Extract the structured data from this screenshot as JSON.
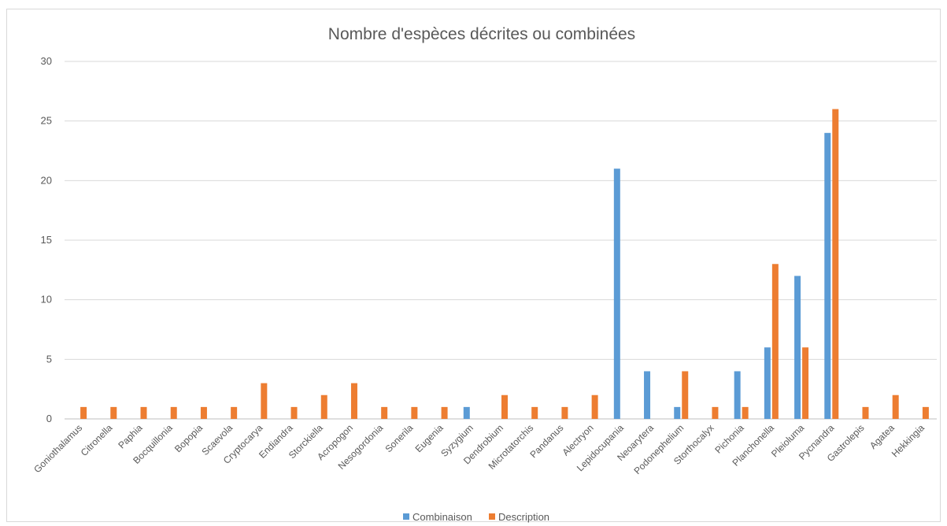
{
  "chart_data": {
    "type": "bar",
    "title": "Nombre d'espèces décrites ou combinées",
    "ylim": [
      0,
      30
    ],
    "ytick_step": 5,
    "ytick_labels": [
      "0",
      "5",
      "10",
      "15",
      "20",
      "25",
      "30"
    ],
    "grid": true,
    "legend_position": "bottom",
    "categories": [
      "Goniothalamus",
      "Citronella",
      "Paphia",
      "Bocquillonia",
      "Bopopia",
      "Scaevola",
      "Cryptocarya",
      "Endiandra",
      "Storckiella",
      "Acropogon",
      "Nesogordonia",
      "Sonerila",
      "Eugenia",
      "Syzygium",
      "Dendrobium",
      "Microtatorchis",
      "Pandanus",
      "Alectryon",
      "Lepidocupania",
      "Neoarytera",
      "Podonephelium",
      "Storthocalyx",
      "Pichonia",
      "Planchonella",
      "Pleioluma",
      "Pycnandra",
      "Gastrolepis",
      "Agatea",
      "Hekkingia"
    ],
    "series": [
      {
        "name": "Combinaison",
        "color": "#5b9bd5",
        "values": [
          0,
          0,
          0,
          0,
          0,
          0,
          0,
          0,
          0,
          0,
          0,
          0,
          0,
          1,
          0,
          0,
          0,
          0,
          21,
          4,
          1,
          0,
          4,
          6,
          12,
          24,
          0,
          0,
          0
        ]
      },
      {
        "name": "Description",
        "color": "#ed7d31",
        "values": [
          1,
          1,
          1,
          1,
          1,
          1,
          3,
          1,
          2,
          3,
          1,
          1,
          1,
          0,
          2,
          1,
          1,
          2,
          0,
          0,
          4,
          1,
          1,
          13,
          6,
          26,
          1,
          2,
          1
        ]
      }
    ]
  }
}
